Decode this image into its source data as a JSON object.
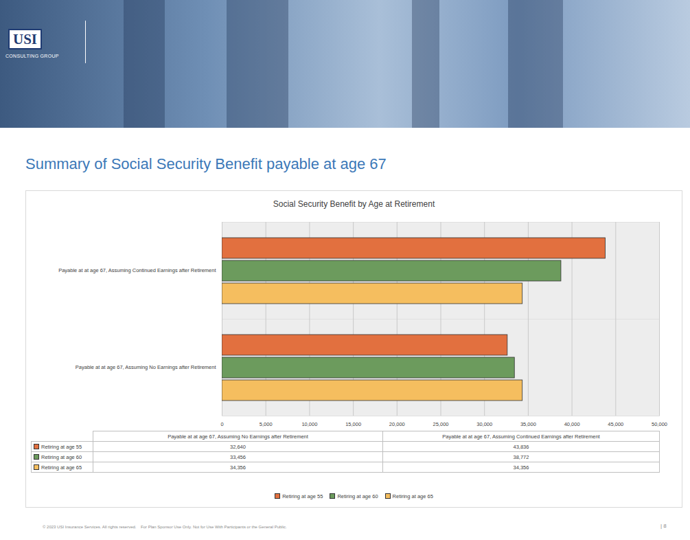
{
  "page": {
    "logo": [
      "USI",
      "CONSULTING GROUP"
    ],
    "heading": "Summary of Social Security Benefit payable at age 67",
    "footer": [
      "© 2023 USI Insurance Services. All rights reserved.",
      "For Plan Sponsor Use Only. Not for Use With Participants or the General Public."
    ],
    "page_number": "| 8"
  },
  "chart_data": {
    "type": "bar",
    "orientation": "horizontal",
    "title": "Social Security Benefit by Age at Retirement",
    "categories": [
      "Payable at at age 67, Assuming No Earnings after Retirement",
      "Payable at at age 67, Assuming Continued Earnings after Retirement"
    ],
    "series": [
      {
        "name": "Retiring at age 55",
        "color": "#e2703f",
        "values": [
          32640,
          43836
        ],
        "value_labels": [
          "32,640",
          "43,836"
        ]
      },
      {
        "name": "Retiring at age 60",
        "color": "#6c9b5d",
        "values": [
          33456,
          38772
        ],
        "value_labels": [
          "33,456",
          "38,772"
        ]
      },
      {
        "name": "Retiring at age 65",
        "color": "#f5be5f",
        "values": [
          34356,
          34356
        ],
        "value_labels": [
          "34,356",
          "34,356"
        ]
      }
    ],
    "xlim": [
      0,
      50000
    ],
    "xticks": [
      0,
      {
        "value": 5000,
        "label": "5,000"
      },
      {
        "value": 10000,
        "label": "10,000"
      },
      {
        "value": 15000,
        "label": "15,000"
      },
      {
        "value": 20000,
        "label": "20,000"
      },
      {
        "value": 25000,
        "label": "25,000"
      },
      {
        "value": 30000,
        "label": "30,000"
      },
      {
        "value": 35000,
        "label": "35,000"
      },
      {
        "value": 40000,
        "label": "40,000"
      },
      {
        "value": 45000,
        "label": "45,000"
      },
      {
        "value": 50000,
        "label": "50,000"
      }
    ],
    "grid": true,
    "legend": "bottom"
  }
}
